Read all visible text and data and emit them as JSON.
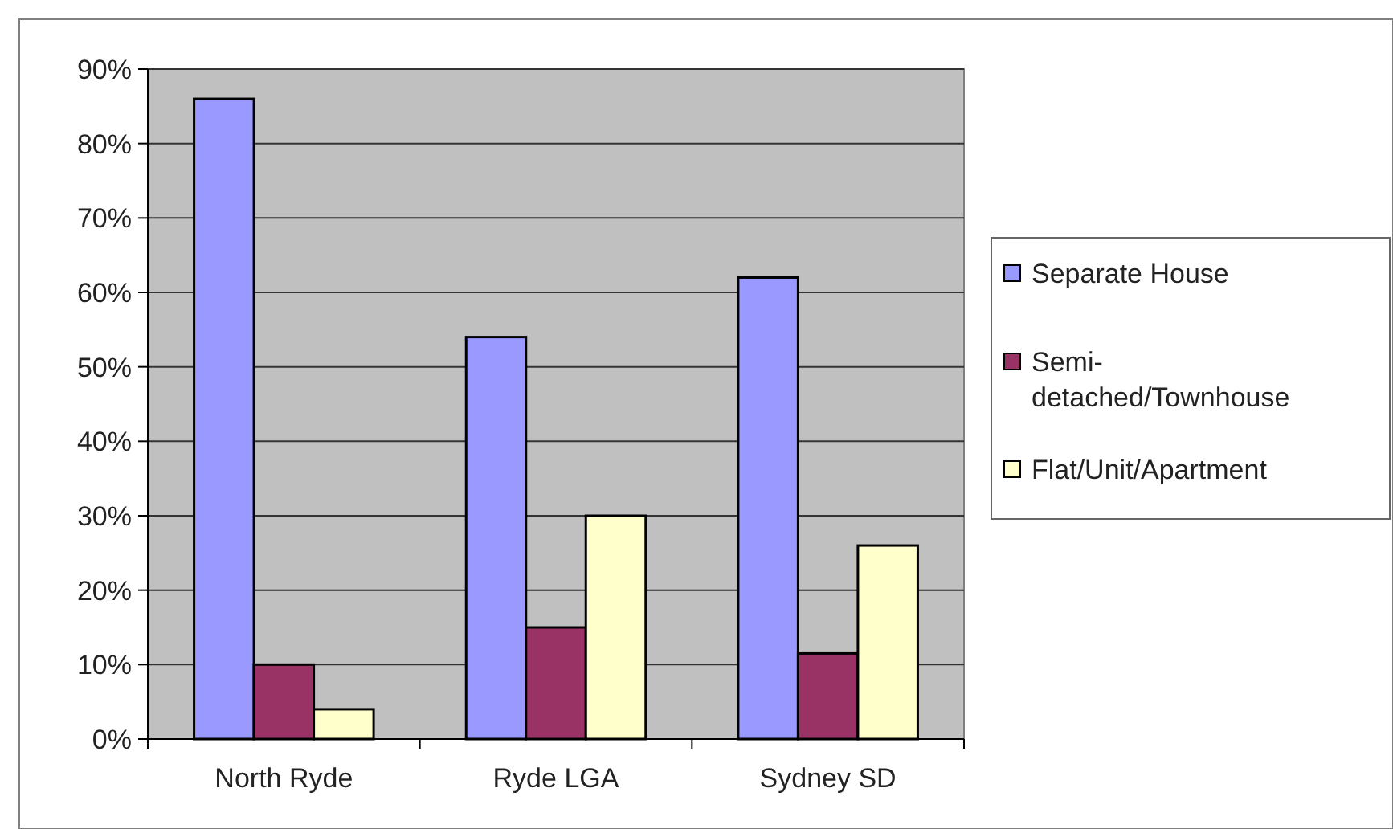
{
  "chart_data": {
    "type": "bar",
    "categories": [
      "North Ryde",
      "Ryde LGA",
      "Sydney SD"
    ],
    "series": [
      {
        "name": "Separate House",
        "color": "#9999ff",
        "values": [
          86,
          54,
          62
        ]
      },
      {
        "name": "Semi-detached/Townhouse",
        "color": "#993366",
        "values": [
          10,
          15,
          11.5
        ]
      },
      {
        "name": "Flat/Unit/Apartment",
        "color": "#ffffcc",
        "values": [
          4,
          30,
          26
        ]
      }
    ],
    "ylim": [
      0,
      90
    ],
    "yticks": [
      {
        "value": 0,
        "label": "0%"
      },
      {
        "value": 10,
        "label": "10%"
      },
      {
        "value": 20,
        "label": "20%"
      },
      {
        "value": 30,
        "label": "30%"
      },
      {
        "value": 40,
        "label": "40%"
      },
      {
        "value": 50,
        "label": "50%"
      },
      {
        "value": 60,
        "label": "60%"
      },
      {
        "value": 70,
        "label": "70%"
      },
      {
        "value": 80,
        "label": "80%"
      },
      {
        "value": 90,
        "label": "90%"
      }
    ],
    "grid": "y",
    "legend": "right"
  }
}
